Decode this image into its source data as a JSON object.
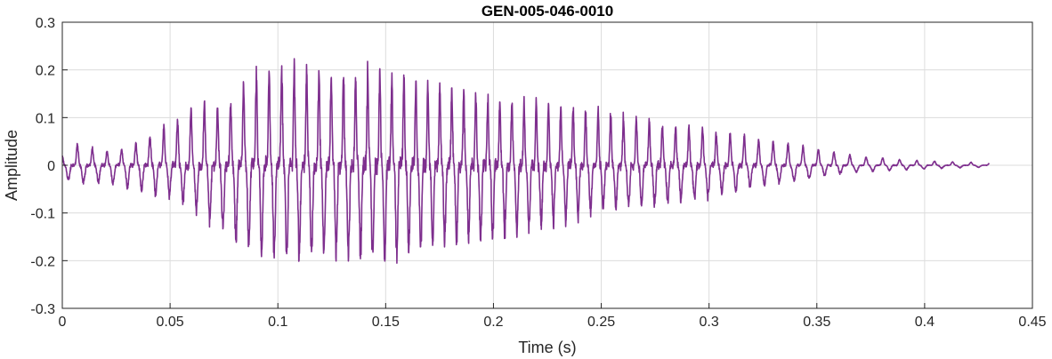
{
  "chart_data": {
    "type": "line",
    "title": "GEN-005-046-0010",
    "xlabel": "Time (s)",
    "ylabel": "Amplitude",
    "xlim": [
      0,
      0.45
    ],
    "ylim": [
      -0.3,
      0.3
    ],
    "grid": true,
    "legend": "none",
    "xticks": [
      0,
      0.05,
      0.1,
      0.15,
      0.2,
      0.25,
      0.3,
      0.35,
      0.4,
      0.45
    ],
    "xtick_labels": [
      "0",
      "0.05",
      "0.1",
      "0.15",
      "0.2",
      "0.25",
      "0.3",
      "0.35",
      "0.4",
      "0.45"
    ],
    "yticks": [
      -0.3,
      -0.2,
      -0.1,
      0,
      0.1,
      0.2,
      0.3
    ],
    "ytick_labels": [
      "-0.3",
      "-0.2",
      "-0.1",
      "0",
      "0.1",
      "0.2",
      "0.3"
    ],
    "series": [
      {
        "color": "#7e2f8e",
        "duration": 0.43,
        "envelope": {
          "t": [
            0,
            0.005,
            0.02,
            0.03,
            0.05,
            0.065,
            0.075,
            0.09,
            0.1,
            0.12,
            0.15,
            0.17,
            0.2,
            0.23,
            0.25,
            0.28,
            0.3,
            0.32,
            0.34,
            0.35,
            0.37,
            0.39,
            0.41,
            0.43
          ],
          "pos": [
            0.02,
            0.05,
            0.03,
            0.04,
            0.09,
            0.14,
            0.13,
            0.2,
            0.22,
            0.21,
            0.2,
            0.18,
            0.15,
            0.13,
            0.12,
            0.09,
            0.08,
            0.06,
            0.045,
            0.035,
            0.02,
            0.012,
            0.008,
            0.005
          ],
          "neg": [
            -0.03,
            -0.04,
            -0.04,
            -0.05,
            -0.07,
            -0.11,
            -0.15,
            -0.2,
            -0.2,
            -0.2,
            -0.21,
            -0.18,
            -0.16,
            -0.13,
            -0.1,
            -0.085,
            -0.07,
            -0.05,
            -0.035,
            -0.025,
            -0.015,
            -0.01,
            -0.006,
            -0.004
          ]
        }
      }
    ]
  }
}
